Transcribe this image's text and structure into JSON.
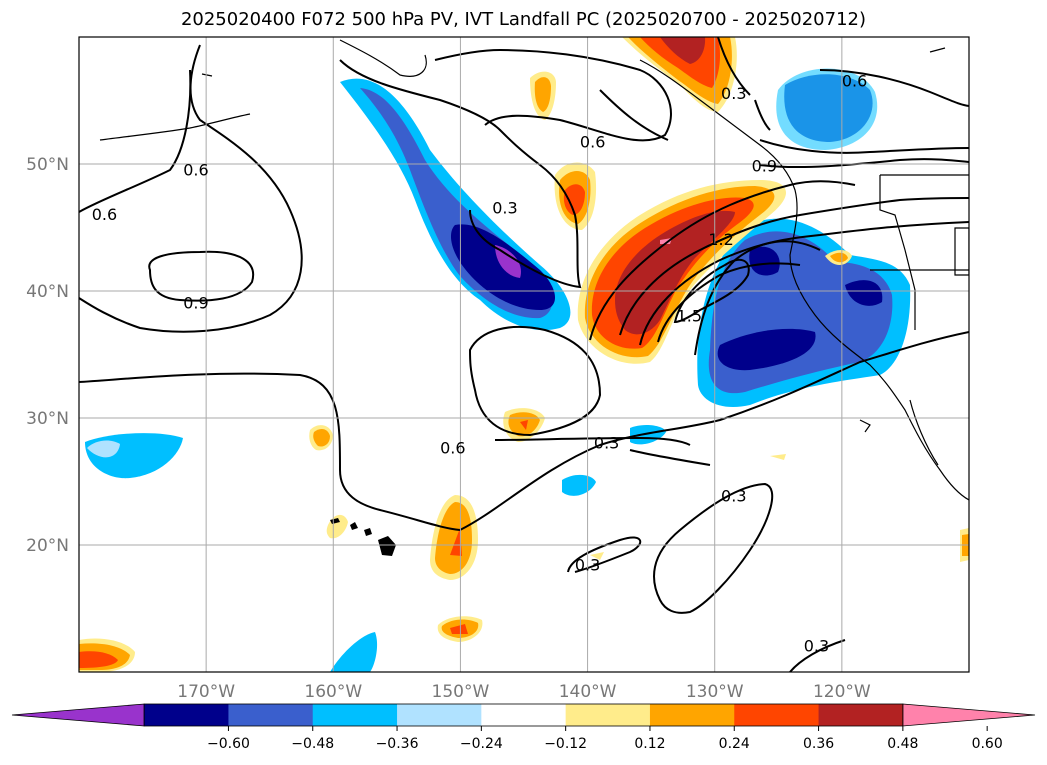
{
  "title": "2025020400 F072 500 hPa PV, IVT Landfall PC (2025020700 - 2025020712)",
  "chart_data": {
    "type": "contour-map",
    "title": "2025020400 F072 500 hPa PV, IVT Landfall PC (2025020700 - 2025020712)",
    "lon_range": [
      -180,
      -110
    ],
    "lat_range": [
      10,
      60
    ],
    "grid": true,
    "lat_ticks": [
      {
        "value": 20,
        "label": "20°N"
      },
      {
        "value": 30,
        "label": "30°N"
      },
      {
        "value": 40,
        "label": "40°N"
      },
      {
        "value": 50,
        "label": "50°N"
      }
    ],
    "lon_ticks": [
      {
        "value": -170,
        "label": "170°W"
      },
      {
        "value": -160,
        "label": "160°W"
      },
      {
        "value": -150,
        "label": "150°W"
      },
      {
        "value": -140,
        "label": "140°W"
      },
      {
        "value": -130,
        "label": "130°W"
      },
      {
        "value": -120,
        "label": "120°W"
      }
    ],
    "colorbar": {
      "ticks": [
        "−0.60",
        "−0.48",
        "−0.36",
        "−0.24",
        "−0.12",
        "0.12",
        "0.24",
        "0.36",
        "0.48",
        "0.60"
      ],
      "colors": [
        "#9933cc",
        "#00008b",
        "#3a5fcd",
        "#00bfff",
        "#b0e2ff",
        "#ffffff",
        "#ffec8b",
        "#ffa500",
        "#ff4500",
        "#b22222",
        "#ff82ab"
      ],
      "extend": "both"
    },
    "contour_labels": [
      {
        "text": "0.9",
        "lon": -170.8,
        "lat": 39.0
      },
      {
        "text": "0.6",
        "lon": -178.0,
        "lat": 46.0
      },
      {
        "text": "0.6",
        "lon": -170.8,
        "lat": 49.5
      },
      {
        "text": "0.3",
        "lon": -146.5,
        "lat": 46.5
      },
      {
        "text": "0.6",
        "lon": -139.6,
        "lat": 51.7
      },
      {
        "text": "0.9",
        "lon": -126.1,
        "lat": 49.8
      },
      {
        "text": "1.2",
        "lon": -129.5,
        "lat": 44.0
      },
      {
        "text": "1.5",
        "lon": -132.0,
        "lat": 38.0
      },
      {
        "text": "0.3",
        "lon": -128.5,
        "lat": 55.5
      },
      {
        "text": "0.6",
        "lon": -119.0,
        "lat": 56.5
      },
      {
        "text": "0.6",
        "lon": -150.6,
        "lat": 27.6
      },
      {
        "text": "0.3",
        "lon": -138.5,
        "lat": 28.0
      },
      {
        "text": "0.3",
        "lon": -128.5,
        "lat": 23.8
      },
      {
        "text": "0.3",
        "lon": -140.0,
        "lat": 18.4
      },
      {
        "text": "0.3",
        "lon": -122.0,
        "lat": 12.0
      }
    ]
  }
}
